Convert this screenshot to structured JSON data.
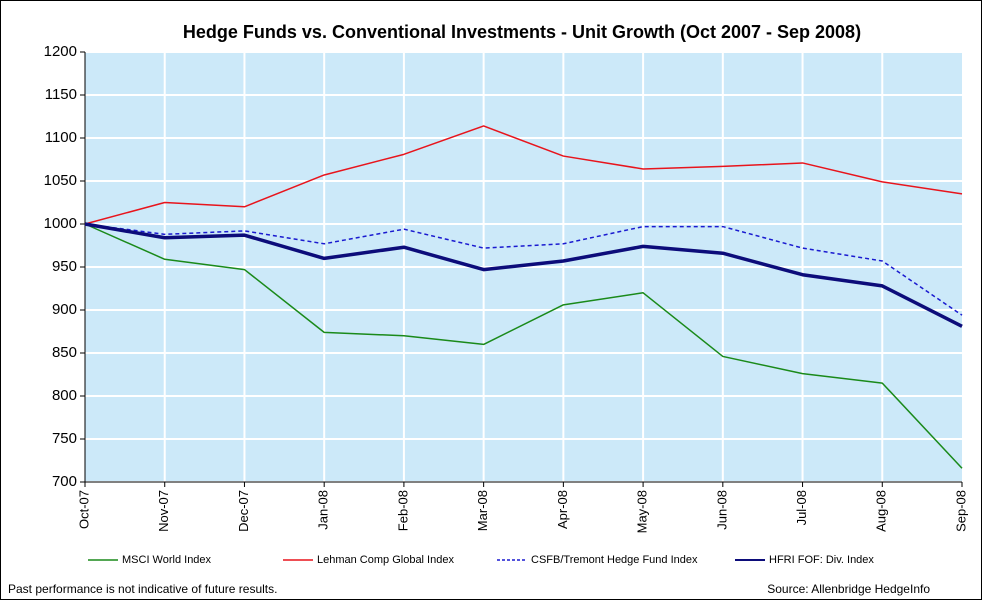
{
  "chart_data": {
    "type": "line",
    "title": "Hedge Funds vs. Conventional Investments - Unit Growth (Oct 2007 - Sep 2008)",
    "categories": [
      "Oct-07",
      "Nov-07",
      "Dec-07",
      "Jan-08",
      "Feb-08",
      "Mar-08",
      "Apr-08",
      "May-08",
      "Jun-08",
      "Jul-08",
      "Aug-08",
      "Sep-08"
    ],
    "series": [
      {
        "name": "MSCI World Index",
        "color": "#1a8a1a",
        "line_width": 1.5,
        "dashed": false,
        "values": [
          1000,
          959,
          947,
          874,
          870,
          860,
          906,
          920,
          846,
          826,
          815,
          716
        ]
      },
      {
        "name": "Lehman Comp Global Index",
        "color": "#e8141c",
        "line_width": 1.5,
        "dashed": false,
        "values": [
          1000,
          1025,
          1020,
          1057,
          1081,
          1114,
          1079,
          1064,
          1067,
          1071,
          1049,
          1035
        ]
      },
      {
        "name": "CSFB/Tremont Hedge Fund Index",
        "color": "#1a1ad0",
        "line_width": 1.5,
        "dashed": true,
        "values": [
          1000,
          988,
          992,
          977,
          994,
          972,
          977,
          997,
          997,
          972,
          957,
          894
        ]
      },
      {
        "name": "HFRI FOF: Div. Index",
        "color": "#0c0c7a",
        "line_width": 3.5,
        "dashed": false,
        "values": [
          1000,
          984,
          987,
          960,
          973,
          947,
          957,
          974,
          966,
          941,
          928,
          881
        ]
      }
    ],
    "ylim": [
      700,
      1200
    ],
    "yticks": [
      700,
      750,
      800,
      850,
      900,
      950,
      1000,
      1050,
      1100,
      1150,
      1200
    ],
    "grid": true,
    "footnote": "Past performance is not indicative of future results.",
    "source": "Source: Allenbridge HedgeInfo"
  }
}
